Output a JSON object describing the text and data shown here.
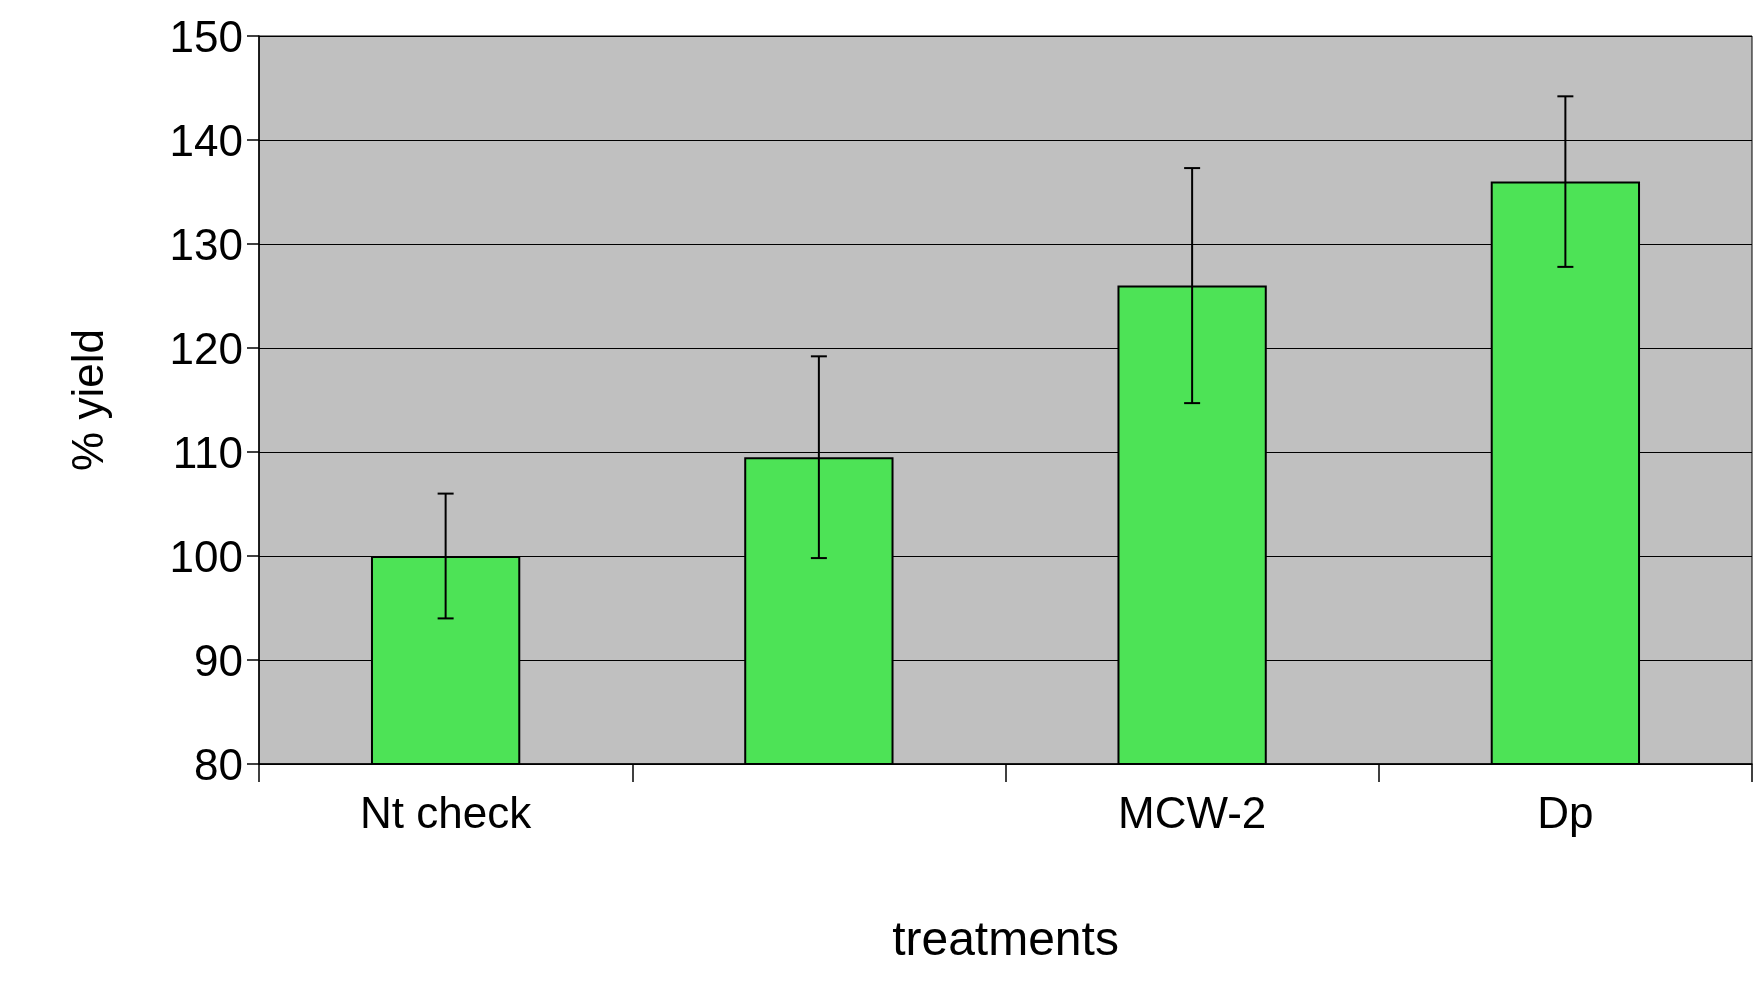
{
  "chart_data": {
    "type": "bar",
    "xlabel": "treatments",
    "ylabel": "% yield",
    "categories": [
      "Nt check",
      null,
      "MCW-2",
      "Dp"
    ],
    "values": [
      100,
      109.5,
      126,
      136
    ],
    "errors": [
      6,
      9.7,
      11.3,
      8.2
    ],
    "color": "#4de356",
    "ylim": [
      80,
      150
    ],
    "yticks": [
      80,
      90,
      100,
      110,
      120,
      130,
      140,
      150
    ],
    "grid": "y"
  }
}
